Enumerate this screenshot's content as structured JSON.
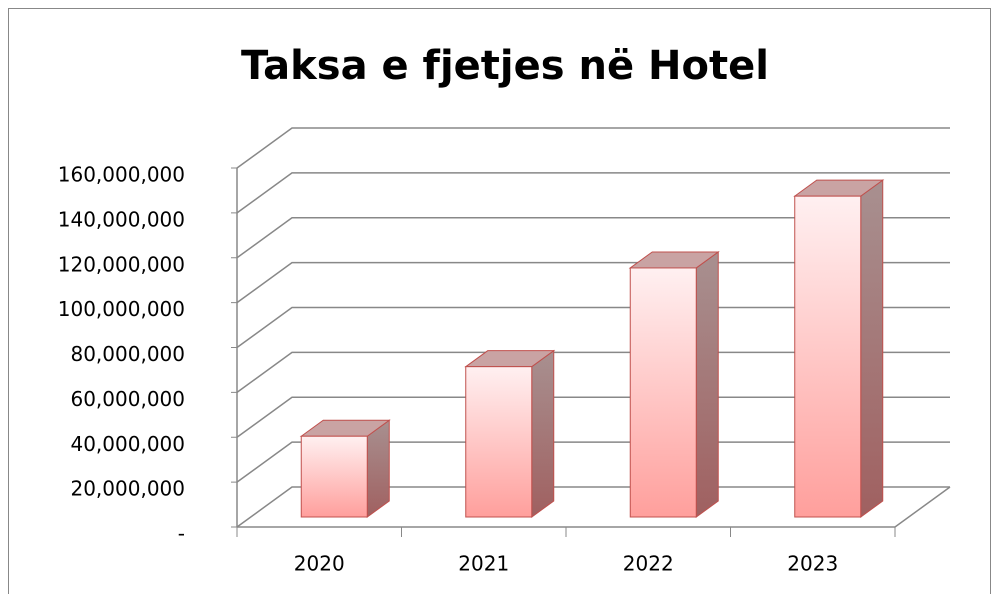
{
  "chart_data": {
    "type": "bar3d",
    "title": "Taksa e fjetjes në Hotel",
    "categories": [
      "2020",
      "2021",
      "2022",
      "2023"
    ],
    "values": [
      36000000,
      67000000,
      111000000,
      143000000
    ],
    "color": "#ff9999",
    "ylim": [
      0,
      160000000
    ],
    "yticks": [
      {
        "value": 0,
        "label": "-"
      },
      {
        "value": 20000000,
        "label": "20,000,000"
      },
      {
        "value": 40000000,
        "label": "40,000,000"
      },
      {
        "value": 60000000,
        "label": "60,000,000"
      },
      {
        "value": 80000000,
        "label": "80,000,000"
      },
      {
        "value": 100000000,
        "label": "100,000,000"
      },
      {
        "value": 120000000,
        "label": "120,000,000"
      },
      {
        "value": 140000000,
        "label": "140,000,000"
      },
      {
        "value": 160000000,
        "label": "160,000,000"
      }
    ],
    "grid": true
  }
}
